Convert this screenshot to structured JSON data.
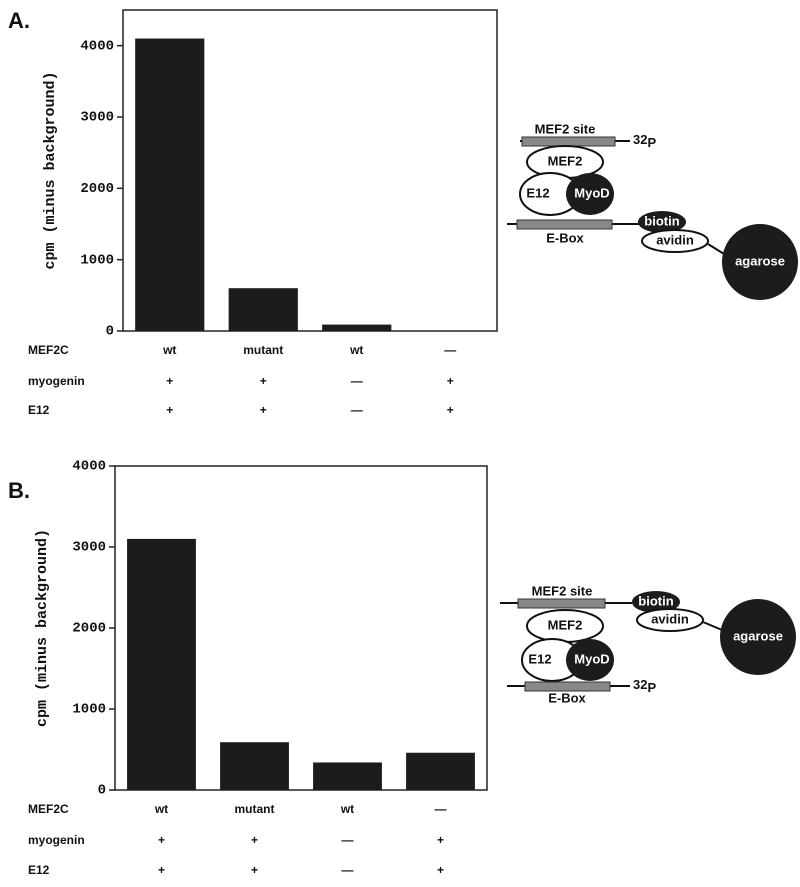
{
  "panels": [
    "A.",
    "B."
  ],
  "chart_data": [
    {
      "type": "bar",
      "y_label": "cpm (minus background)",
      "category_name": "MEF2C",
      "categories": [
        "wt",
        "mutant",
        "wt",
        "—"
      ],
      "condition_rows": [
        {
          "name": "myogenin",
          "labels": [
            "+",
            "+",
            "—",
            "+"
          ]
        },
        {
          "name": "E12",
          "labels": [
            "+",
            "+",
            "—",
            "+"
          ]
        }
      ],
      "values": [
        4100,
        600,
        90,
        0
      ],
      "color": "#1c1c1c",
      "ylim": [
        0,
        4500
      ],
      "yticks": [
        0,
        1000,
        2000,
        3000,
        4000
      ]
    },
    {
      "type": "bar",
      "y_label": "cpm (minus background)",
      "category_name": "MEF2C",
      "categories": [
        "wt",
        "mutant",
        "wt",
        "—"
      ],
      "condition_rows": [
        {
          "name": "myogenin",
          "labels": [
            "+",
            "+",
            "—",
            "+"
          ]
        },
        {
          "name": "E12",
          "labels": [
            "+",
            "+",
            "—",
            "+"
          ]
        }
      ],
      "values": [
        3100,
        590,
        340,
        460
      ],
      "color": "#1c1c1c",
      "ylim": [
        0,
        4000
      ],
      "yticks": [
        0,
        1000,
        2000,
        3000,
        4000
      ]
    }
  ],
  "diagrams": [
    {
      "site": "MEF2 site",
      "isotope": {
        "mass": "32",
        "element": "P"
      },
      "mef2": "MEF2",
      "e12": "E12",
      "myod": "MyoD",
      "ebox": "E-Box",
      "biotin": "biotin",
      "avidin": "avidin",
      "agarose": "agarose"
    },
    {
      "site": "MEF2 site",
      "isotope": {
        "mass": "32",
        "element": "P"
      },
      "mef2": "MEF2",
      "e12": "E12",
      "myod": "MyoD",
      "ebox": "E-Box",
      "biotin": "biotin",
      "avidin": "avidin",
      "agarose": "agarose"
    }
  ]
}
